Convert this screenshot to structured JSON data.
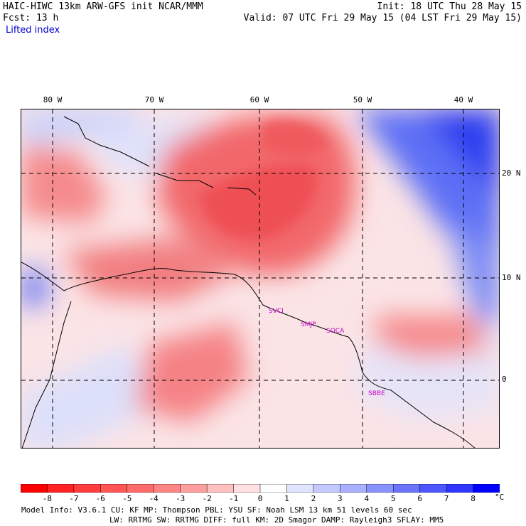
{
  "header": {
    "title_left": "HAIC-HIWC 13km ARW-GFS init   NCAR/MMM",
    "fcst": "Fcst:   13 h",
    "field": "Lifted index",
    "init": "Init: 18 UTC Thu 28 May 15",
    "valid": "Valid: 07 UTC Fri 29 May 15 (04 LST Fri 29 May 15)"
  },
  "map": {
    "lon_labels": [
      "80 W",
      "70 W",
      "60 W",
      "50 W",
      "40 W"
    ],
    "lat_labels": [
      "20 N",
      "10 N",
      "0"
    ],
    "stations": [
      "SVCI",
      "SMJP",
      "SOCA",
      "SBBE"
    ]
  },
  "colorbar": {
    "ticks": [
      "-8",
      "-7",
      "-6",
      "-5",
      "-4",
      "-3",
      "-2",
      "-1",
      "0",
      "1",
      "2",
      "3",
      "4",
      "5",
      "6",
      "7",
      "8"
    ],
    "unit": "°C",
    "colors": [
      "#ff0000",
      "#ff2222",
      "#ff3d3d",
      "#ff5555",
      "#ff6b6b",
      "#ff8585",
      "#ffa0a0",
      "#ffc0c0",
      "#ffe0e0",
      "#ffffff",
      "#e0e4ff",
      "#c4caff",
      "#a8b0ff",
      "#8a92ff",
      "#6b74ff",
      "#4d55ff",
      "#2f37ff",
      "#0000ff"
    ]
  },
  "footer": {
    "line1": "Model Info: V3.6.1    CU: KF     MP: Thompson    PBL: YSU     SF: Noah LSM    13 km   51 levels  60 sec",
    "line2": "LW: RRTMG   SW: RRTMG  DIFF: full   KM: 2D Smagor DAMP: Rayleigh3  SFLAY: MM5"
  }
}
